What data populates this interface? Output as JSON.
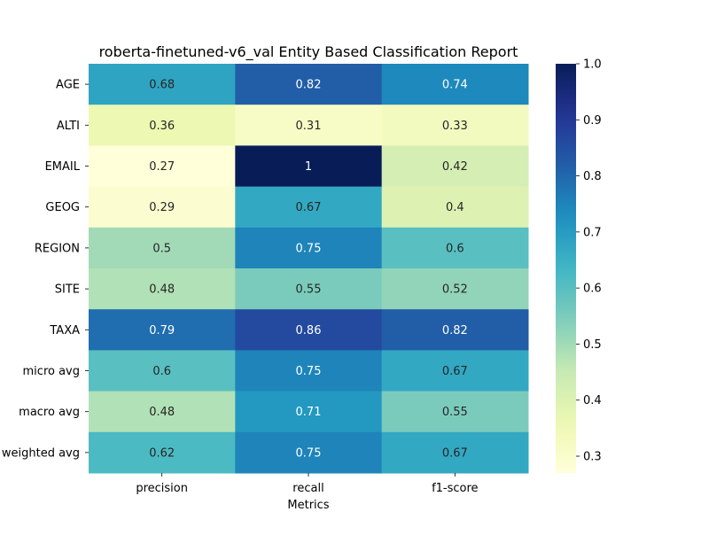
{
  "chart_data": {
    "type": "heatmap",
    "title": "roberta-finetuned-v6_val Entity Based Classification Report",
    "xlabel": "Metrics",
    "ylabel": "",
    "columns": [
      "precision",
      "recall",
      "f1-score"
    ],
    "rows": [
      "AGE",
      "ALTI",
      "EMAIL",
      "GEOG",
      "REGION",
      "SITE",
      "TAXA",
      "micro avg",
      "macro avg",
      "weighted avg"
    ],
    "values": [
      [
        0.68,
        0.82,
        0.74
      ],
      [
        0.36,
        0.31,
        0.33
      ],
      [
        0.27,
        1.0,
        0.42
      ],
      [
        0.29,
        0.67,
        0.4
      ],
      [
        0.5,
        0.75,
        0.6
      ],
      [
        0.48,
        0.55,
        0.52
      ],
      [
        0.79,
        0.86,
        0.82
      ],
      [
        0.6,
        0.75,
        0.67
      ],
      [
        0.48,
        0.71,
        0.55
      ],
      [
        0.62,
        0.75,
        0.67
      ]
    ],
    "labels": [
      [
        "0.68",
        "0.82",
        "0.74"
      ],
      [
        "0.36",
        "0.31",
        "0.33"
      ],
      [
        "0.27",
        "1",
        "0.42"
      ],
      [
        "0.29",
        "0.67",
        "0.4"
      ],
      [
        "0.5",
        "0.75",
        "0.6"
      ],
      [
        "0.48",
        "0.55",
        "0.52"
      ],
      [
        "0.79",
        "0.86",
        "0.82"
      ],
      [
        "0.6",
        "0.75",
        "0.67"
      ],
      [
        "0.48",
        "0.71",
        "0.55"
      ],
      [
        "0.62",
        "0.75",
        "0.67"
      ]
    ],
    "colorscale": "YlGnBu",
    "vmin": 0.27,
    "vmax": 1.0,
    "colorbar_ticks": [
      "0.3",
      "0.4",
      "0.5",
      "0.6",
      "0.7",
      "0.8",
      "0.9",
      "1.0"
    ],
    "colorbar_tick_values": [
      0.3,
      0.4,
      0.5,
      0.6,
      0.7,
      0.8,
      0.9,
      1.0
    ]
  }
}
